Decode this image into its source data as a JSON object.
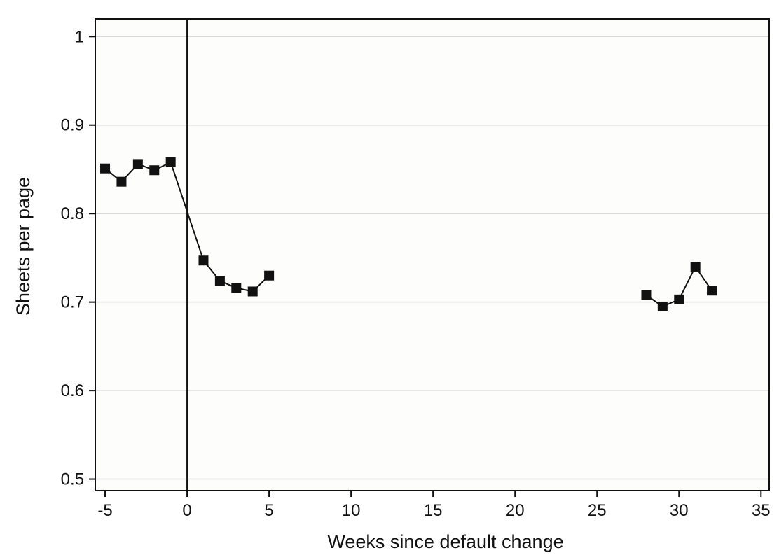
{
  "chart_data": {
    "type": "line",
    "xlabel": "Weeks since default change",
    "ylabel": "Sheets per page",
    "xlim": [
      -5.6,
      35.5
    ],
    "ylim": [
      0.487,
      1.02
    ],
    "x_ticks": [
      -5,
      0,
      5,
      10,
      15,
      20,
      25,
      30,
      35
    ],
    "y_ticks": [
      0.5,
      0.6,
      0.7,
      0.8,
      0.9,
      1
    ],
    "y_tick_labels": [
      "0.5",
      "0.6",
      "0.7",
      "0.8",
      "0.9",
      "1"
    ],
    "grid": "horizontal",
    "reference_line_x": 0,
    "marker": "square",
    "colors": {
      "series": "#111111",
      "grid": "#d9d9d9",
      "plot_background": "#fdfdfb",
      "frame": "#111111"
    },
    "segments": [
      {
        "x": [
          -5,
          -4,
          -3,
          -2,
          -1,
          1,
          2,
          3,
          4,
          5
        ],
        "y": [
          0.851,
          0.836,
          0.856,
          0.849,
          0.858,
          0.747,
          0.724,
          0.716,
          0.712,
          0.73
        ]
      },
      {
        "x": [
          28,
          29,
          30,
          31,
          32
        ],
        "y": [
          0.708,
          0.695,
          0.703,
          0.74,
          0.713
        ]
      }
    ]
  }
}
